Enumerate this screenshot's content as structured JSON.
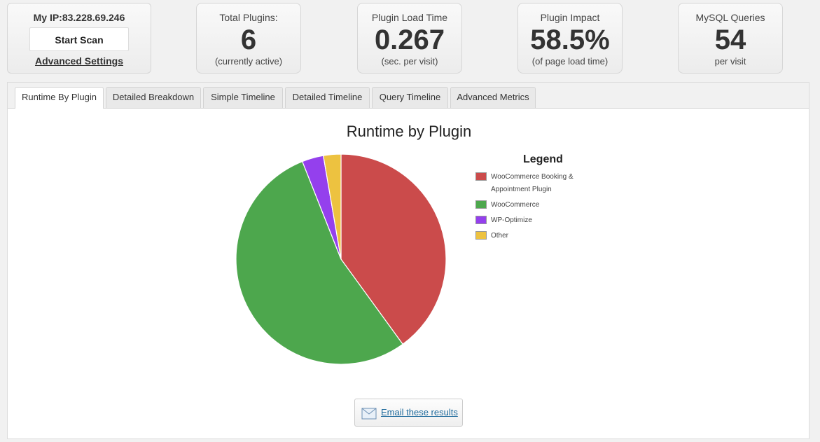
{
  "scan": {
    "ip_label": "My IP:83.228.69.246",
    "start_scan": "Start Scan",
    "advanced_settings": "Advanced Settings"
  },
  "stats": [
    {
      "label": "Total Plugins:",
      "value": "6",
      "sub": "(currently active)"
    },
    {
      "label": "Plugin Load Time",
      "value": "0.267",
      "sub": "(sec. per visit)"
    },
    {
      "label": "Plugin Impact",
      "value": "58.5%",
      "sub": "(of page load time)"
    },
    {
      "label": "MySQL Queries",
      "value": "54",
      "sub": "per visit"
    }
  ],
  "tabs": [
    "Runtime By Plugin",
    "Detailed Breakdown",
    "Simple Timeline",
    "Detailed Timeline",
    "Query Timeline",
    "Advanced Metrics"
  ],
  "active_tab": "Runtime By Plugin",
  "email_button": "Email these results",
  "chart_data": {
    "type": "pie",
    "title": "Runtime by Plugin",
    "legend_title": "Legend",
    "legend_position": "right",
    "categories": [
      "WooCommerce Booking & Appointment Plugin",
      "WooCommerce",
      "WP-Optimize",
      "Other"
    ],
    "values": [
      40,
      54,
      3.3,
      2.7
    ],
    "colors": [
      "#cb4b4b",
      "#4da74d",
      "#9440ed",
      "#edc240"
    ]
  }
}
